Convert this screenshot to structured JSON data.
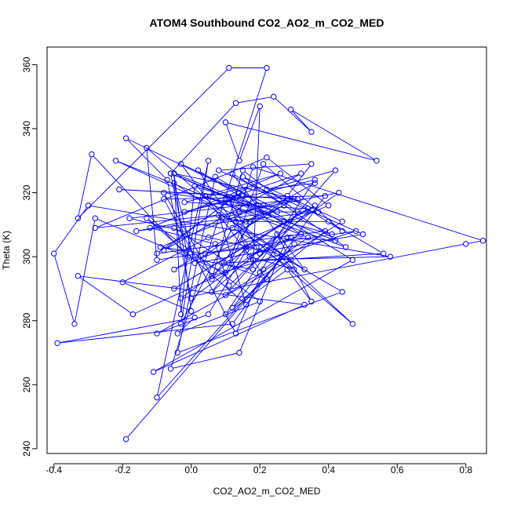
{
  "chart_data": {
    "type": "line",
    "title": "ATOM4 Southbound CO2_AO2_m_CO2_MED",
    "xlabel": "CO2_AO2_m_CO2_MED",
    "ylabel": "Theta (K)",
    "xlim": [
      -0.42,
      0.86
    ],
    "ylim": [
      238.5,
      365.5
    ],
    "xticks": [
      -0.4,
      -0.2,
      0.0,
      0.2,
      0.4,
      0.6,
      0.8
    ],
    "xtick_labels": [
      "-0.4",
      "-0.2",
      "0.0",
      "0.2",
      "0.4",
      "0.6",
      "0.8"
    ],
    "yticks": [
      240,
      260,
      280,
      300,
      320,
      340,
      360
    ],
    "ytick_labels": [
      "240",
      "260",
      "280",
      "300",
      "320",
      "340",
      "360"
    ],
    "grid": false,
    "line_color": "#0000ff",
    "marker": "open-circle",
    "series": [
      {
        "x": [
          -0.19,
          0.3,
          -0.1,
          0.05,
          -0.03,
          0.12,
          0.44,
          -0.04,
          0.07,
          0.47,
          -0.11,
          0.33,
          -0.33,
          -0.17,
          0.18,
          0.58,
          -0.3,
          -0.4,
          -0.34,
          -0.28,
          0.1,
          0.17,
          -0.22,
          0.34,
          0.21,
          0.13,
          -0.08,
          0.39,
          0.12,
          -0.39,
          0.01,
          -0.04,
          0.2,
          -0.13,
          0.16,
          0.08,
          -0.28,
          0.22,
          0.4,
          -0.05,
          0.3,
          -0.21,
          0.15,
          -0.02,
          0.36,
          0.1,
          0.28,
          0.35,
          0.25,
          0.06,
          0.16,
          0.25,
          0.47,
          -0.13,
          -0.1,
          0.48,
          0.06,
          -0.08,
          0.19,
          -0.05,
          0.31,
          -0.18,
          0.17,
          0.02,
          0.32,
          0.2,
          0.11,
          0.16,
          0.05,
          -0.1,
          0.29,
          0.13,
          0.4,
          0.56,
          0.09,
          0.22,
          -0.03,
          0.41,
          0.27,
          -0.03,
          0.8,
          0.85,
          0.18,
          0.14,
          0.37,
          -0.05,
          0.11,
          0.21,
          0.44,
          0.28,
          0.35,
          0.08,
          0.5,
          0.01,
          -0.05,
          0.33,
          0.12,
          0.27,
          0.05,
          -0.2,
          0.0,
          -0.05,
          -0.03,
          0.01,
          0.25,
          -0.16,
          0.43,
          0.0,
          -0.07,
          -0.19,
          0.14,
          -0.08,
          0.32,
          0.1,
          0.27,
          -0.06,
          0.42,
          0.29,
          0.17,
          0.3,
          0.19,
          0.04,
          -0.09,
          0.21,
          0.06,
          0.15,
          0.31,
          0.2,
          0.12,
          0.39,
          -0.1,
          0.17,
          -0.02,
          0.34,
          -0.05,
          0.36,
          0.11,
          0.07,
          -0.12,
          0.26,
          0.04,
          0.45,
          0.15,
          0.44,
          0.1,
          0.42,
          0.22,
          0.36,
          0.16,
          0.09,
          0.28,
          0.02,
          0.18,
          0.2,
          0.14,
          0.1,
          0.54,
          0.29,
          0.35,
          0.24,
          0.13,
          -0.06,
          -0.01,
          -0.29,
          -0.33,
          0.11,
          0.22,
          -0.06,
          0.14,
          0.28
        ],
        "y": [
          243,
          304,
          256,
          330,
          279,
          309,
          289,
          270,
          325,
          299,
          264,
          285,
          294,
          282,
          299,
          300,
          316,
          301,
          279,
          312,
          295,
          311,
          330,
          306,
          296,
          276,
          318,
          319,
          279,
          273,
          281,
          276,
          286,
          312,
          285,
          313,
          309,
          331,
          316,
          296,
          318,
          321,
          319,
          314,
          324,
          282,
          296,
          286,
          307,
          289,
          303,
          301,
          279,
          334,
          299,
          308,
          294,
          320,
          316,
          326,
          318,
          312,
          303,
          327,
          307,
          301,
          318,
          302,
          282,
          276,
          299,
          311,
          311,
          301,
          298,
          293,
          329,
          307,
          311,
          287,
          304,
          305,
          328,
          314,
          314,
          309,
          298,
          329,
          308,
          319,
          329,
          327,
          307,
          298,
          323,
          296,
          326,
          316,
          306,
          292,
          283,
          326,
          282,
          322,
          314,
          308,
          320,
          287,
          324,
          337,
          320,
          302,
          326,
          318,
          311,
          326,
          305,
          306,
          300,
          296,
          303,
          301,
          303,
          316,
          293,
          327,
          314,
          295,
          284,
          308,
          301,
          322,
          317,
          315,
          290,
          316,
          291,
          304,
          309,
          326,
          319,
          303,
          325,
          311,
          288,
          327,
          321,
          323,
          311,
          312,
          318,
          299,
          296,
          347,
          330,
          342,
          330,
          346,
          339,
          350,
          348,
          326,
          300,
          332,
          312,
          359,
          359,
          265,
          270,
          306
        ]
      }
    ]
  }
}
